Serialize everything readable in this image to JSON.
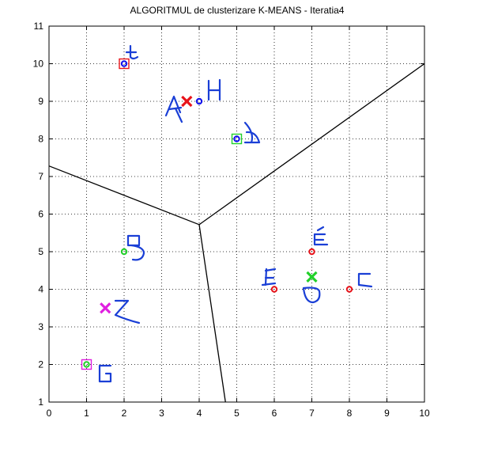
{
  "chart_data": {
    "type": "scatter",
    "title": "ALGORITMUL de clusterizare K-MEANS - Iteratia4",
    "xlabel": "",
    "ylabel": "",
    "xlim": [
      0,
      10
    ],
    "ylim": [
      1,
      11
    ],
    "xticks": [
      0,
      1,
      2,
      3,
      4,
      5,
      6,
      7,
      8,
      9,
      10
    ],
    "yticks": [
      1,
      2,
      3,
      4,
      5,
      6,
      7,
      8,
      9,
      10,
      11
    ],
    "grid": true,
    "colors": {
      "red": "#e8141b",
      "green": "#22d02a",
      "blue": "#1010ee",
      "magenta": "#e020e0",
      "ink": "#1a3fd6"
    },
    "points": [
      {
        "x": 2,
        "y": 10,
        "color": "blue",
        "box": "red",
        "label": "A"
      },
      {
        "x": 4,
        "y": 9,
        "color": "blue",
        "label": "H"
      },
      {
        "x": 5,
        "y": 8,
        "color": "blue",
        "box": "green",
        "label": "D"
      },
      {
        "x": 2,
        "y": 5,
        "color": "green",
        "label": "B"
      },
      {
        "x": 1,
        "y": 2,
        "color": "green",
        "box": "magenta",
        "label": "G"
      },
      {
        "x": 7,
        "y": 5,
        "color": "red",
        "label": "E"
      },
      {
        "x": 6,
        "y": 4,
        "color": "red",
        "label": "F"
      },
      {
        "x": 8,
        "y": 4,
        "color": "red",
        "label": "C"
      }
    ],
    "centroids": [
      {
        "x": 3.67,
        "y": 9,
        "color": "red"
      },
      {
        "x": 7,
        "y": 4.33,
        "color": "green"
      },
      {
        "x": 1.5,
        "y": 3.5,
        "color": "magenta"
      }
    ],
    "boundaries": [
      [
        [
          0,
          7.28
        ],
        [
          4,
          5.72
        ]
      ],
      [
        [
          4,
          5.72
        ],
        [
          10,
          10
        ]
      ],
      [
        [
          4,
          5.72
        ],
        [
          4.7,
          1
        ]
      ]
    ]
  }
}
